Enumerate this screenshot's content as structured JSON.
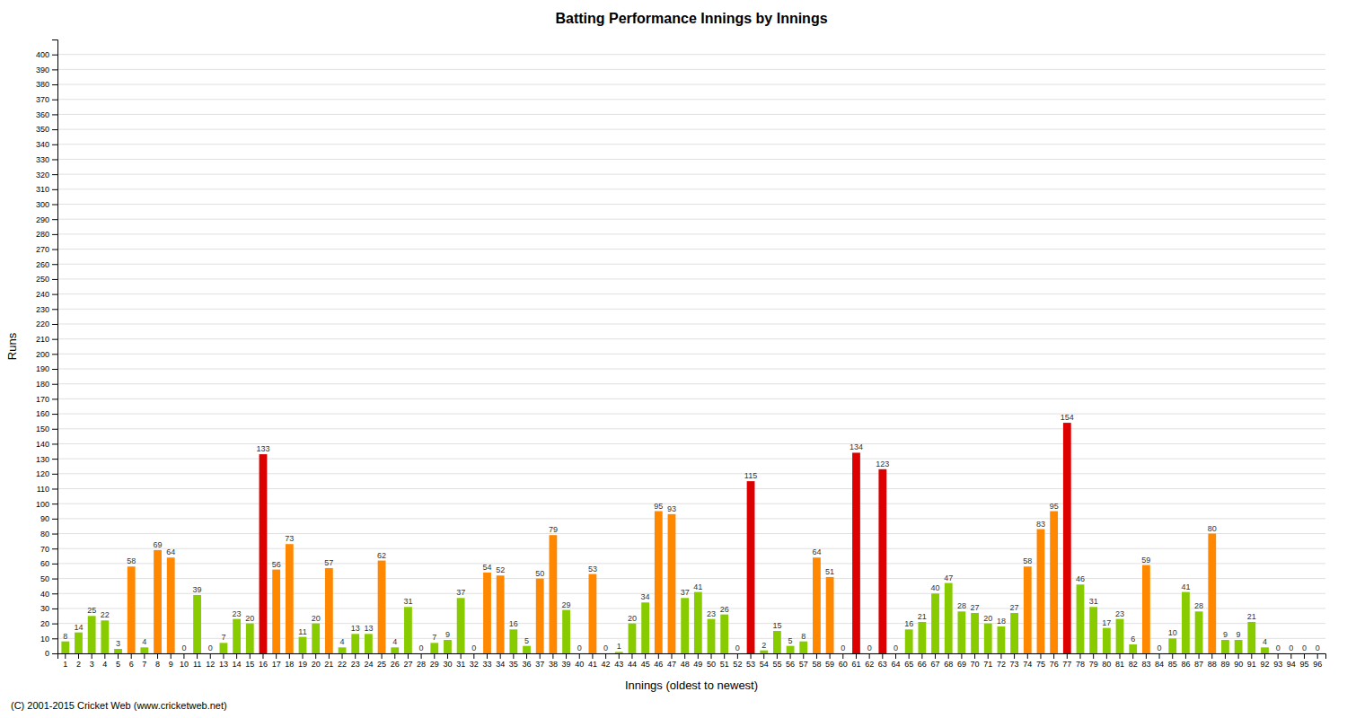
{
  "chart_data": {
    "type": "bar",
    "title": "Batting Performance Innings by Innings",
    "x_label": "Innings (oldest to newest)",
    "y_label": "Runs",
    "annotations": [
      "(C) 2001-2015 Cricket Web (www.cricketweb.net)"
    ],
    "categories": [
      "1",
      "2",
      "3",
      "4",
      "5",
      "6",
      "7",
      "8",
      "9",
      "10",
      "11",
      "12",
      "13",
      "14",
      "15",
      "16",
      "17",
      "18",
      "19",
      "20",
      "21",
      "22",
      "23",
      "24",
      "25",
      "26",
      "27",
      "28",
      "29",
      "30",
      "31",
      "32",
      "33",
      "34",
      "35",
      "36",
      "37",
      "38",
      "39",
      "40",
      "41",
      "42",
      "43",
      "44",
      "45",
      "46",
      "47",
      "48",
      "49",
      "50",
      "51",
      "52",
      "53",
      "54",
      "55",
      "56",
      "57",
      "58",
      "59",
      "60",
      "61",
      "62",
      "63",
      "64",
      "65",
      "66",
      "67",
      "68",
      "69",
      "70",
      "71",
      "72",
      "73",
      "74",
      "75",
      "76",
      "77",
      "78",
      "79",
      "80",
      "81",
      "82",
      "83",
      "84",
      "85",
      "86",
      "87",
      "88",
      "89",
      "90",
      "91",
      "92",
      "93",
      "94",
      "95",
      "96"
    ],
    "values": [
      8,
      14,
      25,
      22,
      3,
      58,
      4,
      69,
      64,
      0,
      39,
      0,
      7,
      23,
      20,
      133,
      56,
      73,
      11,
      20,
      57,
      4,
      13,
      13,
      62,
      4,
      31,
      0,
      7,
      9,
      37,
      0,
      54,
      52,
      16,
      5,
      50,
      79,
      29,
      0,
      53,
      0,
      1,
      20,
      34,
      95,
      93,
      37,
      41,
      23,
      26,
      0,
      115,
      2,
      15,
      5,
      8,
      64,
      51,
      0,
      134,
      0,
      123,
      0,
      16,
      21,
      40,
      47,
      28,
      27,
      20,
      18,
      27,
      58,
      83,
      95,
      154,
      46,
      31,
      17,
      23,
      6,
      59,
      0,
      10,
      41,
      28,
      80,
      9,
      9,
      21,
      4,
      0,
      0,
      0,
      0
    ],
    "colors": [
      "#88cc00",
      "#88cc00",
      "#88cc00",
      "#88cc00",
      "#88cc00",
      "#ff8800",
      "#88cc00",
      "#ff8800",
      "#ff8800",
      "#88cc00",
      "#88cc00",
      "#88cc00",
      "#88cc00",
      "#88cc00",
      "#88cc00",
      "#dd0000",
      "#ff8800",
      "#ff8800",
      "#88cc00",
      "#88cc00",
      "#ff8800",
      "#88cc00",
      "#88cc00",
      "#88cc00",
      "#ff8800",
      "#88cc00",
      "#88cc00",
      "#88cc00",
      "#88cc00",
      "#88cc00",
      "#88cc00",
      "#88cc00",
      "#ff8800",
      "#ff8800",
      "#88cc00",
      "#88cc00",
      "#ff8800",
      "#ff8800",
      "#88cc00",
      "#88cc00",
      "#ff8800",
      "#88cc00",
      "#88cc00",
      "#88cc00",
      "#88cc00",
      "#ff8800",
      "#ff8800",
      "#88cc00",
      "#88cc00",
      "#88cc00",
      "#88cc00",
      "#88cc00",
      "#dd0000",
      "#88cc00",
      "#88cc00",
      "#88cc00",
      "#88cc00",
      "#ff8800",
      "#ff8800",
      "#88cc00",
      "#dd0000",
      "#88cc00",
      "#dd0000",
      "#88cc00",
      "#88cc00",
      "#88cc00",
      "#88cc00",
      "#88cc00",
      "#88cc00",
      "#88cc00",
      "#88cc00",
      "#88cc00",
      "#88cc00",
      "#ff8800",
      "#ff8800",
      "#ff8800",
      "#dd0000",
      "#88cc00",
      "#88cc00",
      "#88cc00",
      "#88cc00",
      "#88cc00",
      "#ff8800",
      "#88cc00",
      "#88cc00",
      "#88cc00",
      "#88cc00",
      "#ff8800",
      "#88cc00",
      "#88cc00",
      "#88cc00",
      "#88cc00",
      "#88cc00",
      "#88cc00",
      "#88cc00",
      "#88cc00"
    ],
    "ylim": [
      0,
      410
    ],
    "yticks": [
      0,
      10,
      20,
      30,
      40,
      50,
      60,
      70,
      80,
      90,
      100,
      110,
      120,
      130,
      140,
      150,
      160,
      170,
      180,
      190,
      200,
      210,
      220,
      230,
      240,
      250,
      260,
      270,
      280,
      290,
      300,
      310,
      320,
      330,
      340,
      350,
      360,
      370,
      380,
      390,
      400
    ],
    "grid": true,
    "data_labels": true
  }
}
